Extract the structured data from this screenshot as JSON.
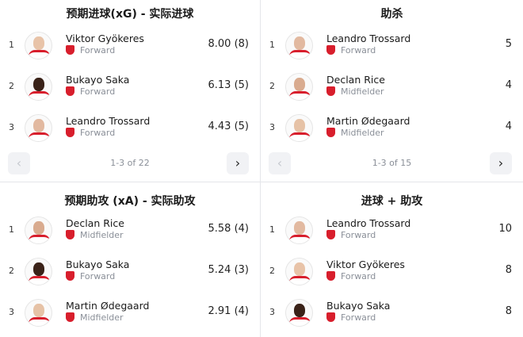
{
  "panels": [
    {
      "title": "预期进球(xG) - 实际进球",
      "pagination": "1-3 of 22",
      "rows": [
        {
          "rank": "1",
          "name": "Viktor Gyökeres",
          "position": "Forward",
          "value": "8.00 (8)",
          "skin": "#e8c3a8"
        },
        {
          "rank": "2",
          "name": "Bukayo Saka",
          "position": "Forward",
          "value": "6.13 (5)",
          "skin": "#3a2218"
        },
        {
          "rank": "3",
          "name": "Leandro Trossard",
          "position": "Forward",
          "value": "4.43 (5)",
          "skin": "#e2b9a0"
        }
      ]
    },
    {
      "title": "助杀",
      "pagination": "1-3 of 15",
      "rows": [
        {
          "rank": "1",
          "name": "Leandro Trossard",
          "position": "Forward",
          "value": "5",
          "skin": "#e2b9a0"
        },
        {
          "rank": "2",
          "name": "Declan Rice",
          "position": "Midfielder",
          "value": "4",
          "skin": "#d9ab8f"
        },
        {
          "rank": "3",
          "name": "Martin Ødegaard",
          "position": "Midfielder",
          "value": "4",
          "skin": "#e6c2a6"
        }
      ]
    },
    {
      "title": "预期助攻 (xA) - 实际助攻",
      "rows": [
        {
          "rank": "1",
          "name": "Declan Rice",
          "position": "Midfielder",
          "value": "5.58 (4)",
          "skin": "#d9ab8f"
        },
        {
          "rank": "2",
          "name": "Bukayo Saka",
          "position": "Forward",
          "value": "5.24 (3)",
          "skin": "#3a2218"
        },
        {
          "rank": "3",
          "name": "Martin Ødegaard",
          "position": "Midfielder",
          "value": "2.91 (4)",
          "skin": "#e6c2a6"
        }
      ]
    },
    {
      "title": "进球 + 助攻",
      "rows": [
        {
          "rank": "1",
          "name": "Leandro Trossard",
          "position": "Forward",
          "value": "10",
          "skin": "#e2b9a0"
        },
        {
          "rank": "2",
          "name": "Viktor Gyökeres",
          "position": "Forward",
          "value": "8",
          "skin": "#e8c3a8"
        },
        {
          "rank": "3",
          "name": "Bukayo Saka",
          "position": "Forward",
          "value": "8",
          "skin": "#3a2218"
        }
      ]
    }
  ],
  "icons": {
    "prev": "‹",
    "next": "›",
    "club": "arsenal-crest-icon"
  },
  "colors": {
    "club_red": "#d81e2c",
    "muted": "#8a8f98"
  }
}
